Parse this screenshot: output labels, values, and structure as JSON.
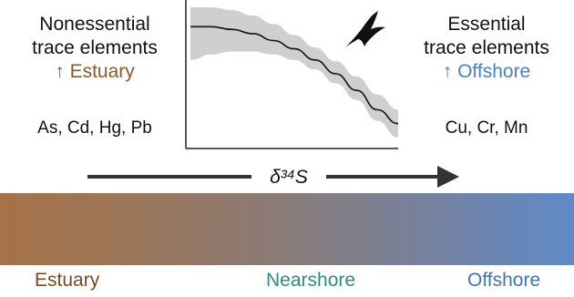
{
  "left": {
    "heading_line1": "Nonessential",
    "heading_line2": "trace elements",
    "direction": "↑ Estuary",
    "elements": "As, Cd, Hg, Pb"
  },
  "right": {
    "heading_line1": "Essential",
    "heading_line2": "trace elements",
    "direction": "↑ Offshore",
    "elements": "Cu, Cr, Mn"
  },
  "axis": {
    "arrow_label": "δ³⁴S"
  },
  "zones": {
    "estuary": "Estuary",
    "nearshore": "Nearshore",
    "offshore": "Offshore"
  },
  "colors": {
    "estuary": "#7a4a1c",
    "nearshore": "#2a8c8c",
    "offshore": "#3f73b8",
    "band_left": "#a57249",
    "band_right": "#5f8ac8"
  },
  "icons": {
    "bird": "seabird-silhouette-icon",
    "arrow": "right-arrow-icon"
  },
  "chart_data": {
    "type": "line",
    "title": "",
    "xlabel": "",
    "ylabel": "",
    "x": [
      0,
      0.1,
      0.2,
      0.3,
      0.4,
      0.5,
      0.6,
      0.7,
      0.8,
      0.9,
      1.0
    ],
    "series": [
      {
        "values": [
          0.86,
          0.86,
          0.84,
          0.81,
          0.76,
          0.7,
          0.62,
          0.52,
          0.4,
          0.26,
          0.16
        ],
        "lower": [
          0.62,
          0.66,
          0.68,
          0.68,
          0.66,
          0.62,
          0.55,
          0.45,
          0.33,
          0.18,
          0.06
        ],
        "upper": [
          1.0,
          1.0,
          0.98,
          0.94,
          0.88,
          0.8,
          0.71,
          0.61,
          0.5,
          0.37,
          0.26
        ]
      }
    ],
    "xlim": [
      0,
      1
    ],
    "ylim": [
      0,
      1
    ],
    "grid": false
  }
}
